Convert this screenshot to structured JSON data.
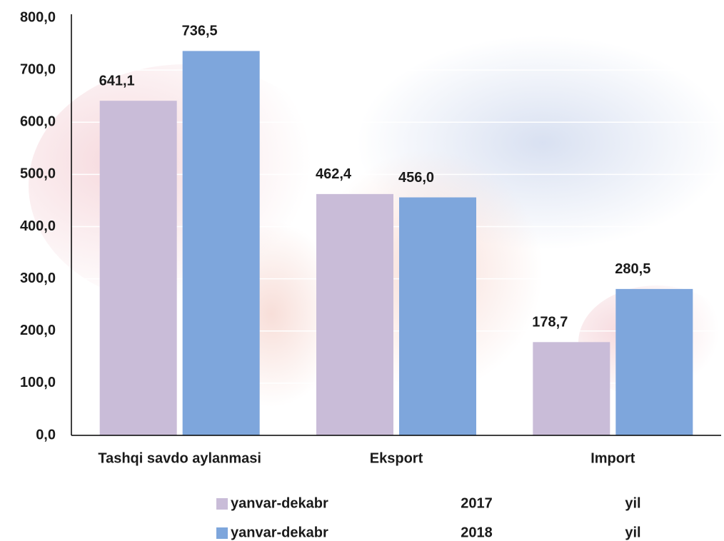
{
  "chart_data": {
    "type": "bar",
    "categories": [
      "Tashqi savdo aylanmasi",
      "Eksport",
      "Import"
    ],
    "series": [
      {
        "name": "yanvar-dekabr 2017 yil",
        "color": "#c9bcd8",
        "values": [
          641.1,
          462.4,
          178.7
        ],
        "value_labels": [
          "641,1",
          "462,4",
          "178,7"
        ]
      },
      {
        "name": "yanvar-dekabr 2018 yil",
        "color": "#7ea6dc",
        "values": [
          736.5,
          456.0,
          280.5
        ],
        "value_labels": [
          "736,5",
          "456,0",
          "280,5"
        ]
      }
    ],
    "ylim": [
      0,
      800
    ],
    "yticks": [
      {
        "value": 0,
        "label": "0,0"
      },
      {
        "value": 100,
        "label": "100,0"
      },
      {
        "value": 200,
        "label": "200,0"
      },
      {
        "value": 300,
        "label": "300,0"
      },
      {
        "value": 400,
        "label": "400,0"
      },
      {
        "value": 500,
        "label": "500,0"
      },
      {
        "value": 600,
        "label": "600,0"
      },
      {
        "value": 700,
        "label": "700,0"
      },
      {
        "value": 800,
        "label": "800,0"
      }
    ],
    "grid": true,
    "legend": "bottom"
  }
}
